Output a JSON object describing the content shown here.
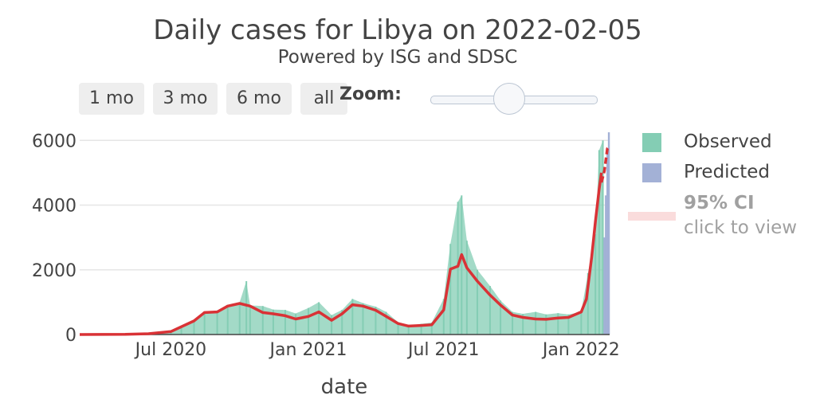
{
  "title": "Daily cases for Libya on 2022-02-05",
  "subtitle": "Powered by ISG and SDSC",
  "controls": {
    "buttons": [
      "1 mo",
      "3 mo",
      "6 mo",
      "all"
    ],
    "zoom_label": "Zoom:"
  },
  "legend": {
    "observed": "Observed",
    "predicted": "Predicted",
    "ci_title": "95% CI",
    "ci_hint": "click to view"
  },
  "colors": {
    "observed": "#84cdb4",
    "predicted": "#a3b1d6",
    "trend": "#d93236",
    "ci": "#fadcdc",
    "grid": "#e6e6e6",
    "text": "#444444",
    "legend_muted": "#a0a0a0"
  },
  "chart_data": {
    "type": "bar",
    "title": "Daily cases for Libya on 2022-02-05",
    "xlabel": "date",
    "ylabel": "",
    "ylim": [
      0,
      6400
    ],
    "y_ticks": [
      "0",
      "2000",
      "4000",
      "6000"
    ],
    "x_ticks": [
      "Jul 2020",
      "Jan 2021",
      "Jul 2021",
      "Jan 2022"
    ],
    "x_range": [
      "2020-03-01",
      "2022-02-08"
    ],
    "series": [
      {
        "name": "Observed",
        "kind": "bar",
        "points": [
          [
            "2020-03-01",
            0
          ],
          [
            "2020-04-01",
            5
          ],
          [
            "2020-05-01",
            10
          ],
          [
            "2020-06-01",
            40
          ],
          [
            "2020-07-01",
            110
          ],
          [
            "2020-07-15",
            230
          ],
          [
            "2020-08-01",
            400
          ],
          [
            "2020-08-15",
            700
          ],
          [
            "2020-09-01",
            740
          ],
          [
            "2020-09-15",
            920
          ],
          [
            "2020-10-01",
            1000
          ],
          [
            "2020-10-10",
            1650
          ],
          [
            "2020-10-15",
            900
          ],
          [
            "2020-11-01",
            880
          ],
          [
            "2020-11-15",
            770
          ],
          [
            "2020-12-01",
            760
          ],
          [
            "2020-12-15",
            650
          ],
          [
            "2021-01-01",
            820
          ],
          [
            "2021-01-15",
            1000
          ],
          [
            "2021-02-01",
            600
          ],
          [
            "2021-02-15",
            760
          ],
          [
            "2021-03-01",
            1100
          ],
          [
            "2021-03-15",
            970
          ],
          [
            "2021-04-01",
            860
          ],
          [
            "2021-04-15",
            700
          ],
          [
            "2021-05-01",
            380
          ],
          [
            "2021-05-15",
            270
          ],
          [
            "2021-06-01",
            330
          ],
          [
            "2021-06-15",
            370
          ],
          [
            "2021-07-01",
            1100
          ],
          [
            "2021-07-10",
            2800
          ],
          [
            "2021-07-20",
            4100
          ],
          [
            "2021-07-25",
            4300
          ],
          [
            "2021-08-01",
            2900
          ],
          [
            "2021-08-15",
            2000
          ],
          [
            "2021-09-01",
            1500
          ],
          [
            "2021-09-15",
            1050
          ],
          [
            "2021-10-01",
            700
          ],
          [
            "2021-10-15",
            640
          ],
          [
            "2021-11-01",
            700
          ],
          [
            "2021-11-15",
            620
          ],
          [
            "2021-12-01",
            660
          ],
          [
            "2021-12-15",
            620
          ],
          [
            "2022-01-01",
            700
          ],
          [
            "2022-01-10",
            1900
          ],
          [
            "2022-01-20",
            3100
          ],
          [
            "2022-01-25",
            5700
          ],
          [
            "2022-01-30",
            6000
          ]
        ]
      },
      {
        "name": "Predicted",
        "kind": "bar",
        "points": [
          [
            "2022-02-01",
            3000
          ],
          [
            "2022-02-03",
            4300
          ],
          [
            "2022-02-05",
            5600
          ],
          [
            "2022-02-07",
            6250
          ]
        ]
      },
      {
        "name": "trend",
        "kind": "line",
        "points": [
          [
            "2020-03-01",
            0
          ],
          [
            "2020-05-01",
            5
          ],
          [
            "2020-06-01",
            25
          ],
          [
            "2020-07-01",
            90
          ],
          [
            "2020-08-01",
            420
          ],
          [
            "2020-08-15",
            680
          ],
          [
            "2020-09-01",
            700
          ],
          [
            "2020-09-15",
            880
          ],
          [
            "2020-10-01",
            960
          ],
          [
            "2020-10-15",
            880
          ],
          [
            "2020-11-01",
            680
          ],
          [
            "2020-11-15",
            640
          ],
          [
            "2020-12-01",
            580
          ],
          [
            "2020-12-15",
            480
          ],
          [
            "2021-01-01",
            560
          ],
          [
            "2021-01-15",
            700
          ],
          [
            "2021-02-01",
            440
          ],
          [
            "2021-02-15",
            640
          ],
          [
            "2021-03-01",
            920
          ],
          [
            "2021-03-15",
            880
          ],
          [
            "2021-04-01",
            750
          ],
          [
            "2021-04-15",
            560
          ],
          [
            "2021-05-01",
            340
          ],
          [
            "2021-05-15",
            260
          ],
          [
            "2021-06-01",
            280
          ],
          [
            "2021-06-15",
            300
          ],
          [
            "2021-07-01",
            760
          ],
          [
            "2021-07-10",
            2020
          ],
          [
            "2021-07-20",
            2110
          ],
          [
            "2021-07-25",
            2470
          ],
          [
            "2021-08-01",
            2060
          ],
          [
            "2021-08-15",
            1650
          ],
          [
            "2021-09-01",
            1220
          ],
          [
            "2021-09-15",
            910
          ],
          [
            "2021-10-01",
            600
          ],
          [
            "2021-10-15",
            530
          ],
          [
            "2021-11-01",
            480
          ],
          [
            "2021-11-15",
            470
          ],
          [
            "2021-12-01",
            510
          ],
          [
            "2021-12-15",
            530
          ],
          [
            "2022-01-01",
            700
          ],
          [
            "2022-01-08",
            1100
          ],
          [
            "2022-01-15",
            2400
          ],
          [
            "2022-01-20",
            3500
          ],
          [
            "2022-01-25",
            4500
          ],
          [
            "2022-01-28",
            5000
          ]
        ]
      },
      {
        "name": "trend-predicted",
        "kind": "line",
        "points": [
          [
            "2022-01-28",
            4700
          ],
          [
            "2022-02-01",
            5050
          ],
          [
            "2022-02-03",
            5400
          ],
          [
            "2022-02-05",
            5750
          ],
          [
            "2022-02-07",
            5800
          ]
        ]
      }
    ],
    "grid": true,
    "legend_position": "right"
  }
}
